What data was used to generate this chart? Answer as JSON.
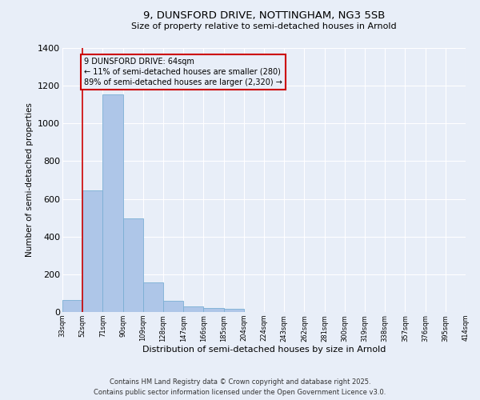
{
  "title1": "9, DUNSFORD DRIVE, NOTTINGHAM, NG3 5SB",
  "title2": "Size of property relative to semi-detached houses in Arnold",
  "xlabel": "Distribution of semi-detached houses by size in Arnold",
  "ylabel": "Number of semi-detached properties",
  "bar_values": [
    65,
    645,
    1155,
    495,
    155,
    60,
    30,
    20,
    15,
    0,
    0,
    0,
    0,
    0,
    0,
    0,
    0,
    0,
    0,
    0
  ],
  "bin_labels": [
    "33sqm",
    "52sqm",
    "71sqm",
    "90sqm",
    "109sqm",
    "128sqm",
    "147sqm",
    "166sqm",
    "185sqm",
    "204sqm",
    "224sqm",
    "243sqm",
    "262sqm",
    "281sqm",
    "300sqm",
    "319sqm",
    "338sqm",
    "357sqm",
    "376sqm",
    "395sqm",
    "414sqm"
  ],
  "bar_color": "#aec6e8",
  "bar_edge_color": "#7aafd4",
  "background_color": "#e8eef8",
  "grid_color": "#ffffff",
  "vline_x": 1.0,
  "vline_color": "#cc0000",
  "annotation_title": "9 DUNSFORD DRIVE: 64sqm",
  "annotation_line1": "← 11% of semi-detached houses are smaller (280)",
  "annotation_line2": "89% of semi-detached houses are larger (2,320) →",
  "annotation_box_color": "#cc0000",
  "ylim": [
    0,
    1400
  ],
  "yticks": [
    0,
    200,
    400,
    600,
    800,
    1000,
    1200,
    1400
  ],
  "footer1": "Contains HM Land Registry data © Crown copyright and database right 2025.",
  "footer2": "Contains public sector information licensed under the Open Government Licence v3.0."
}
